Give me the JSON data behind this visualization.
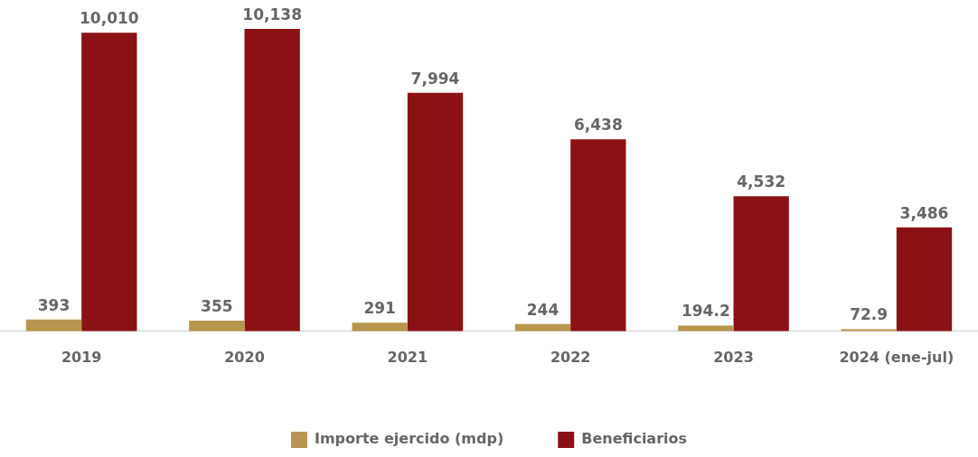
{
  "chart_data": {
    "type": "bar",
    "categories": [
      "2019",
      "2020",
      "2021",
      "2022",
      "2023",
      "2024 (ene-jul)"
    ],
    "series": [
      {
        "name": "Importe ejercido (mdp)",
        "color": "#b8964f",
        "values": [
          393,
          355,
          291,
          244,
          194.2,
          72.9
        ],
        "value_labels": [
          "393",
          "355",
          "291",
          "244",
          "194.2",
          "72.9"
        ]
      },
      {
        "name": "Beneficiarios",
        "color": "#8b1214",
        "values": [
          10010,
          10138,
          7994,
          6438,
          4532,
          3486
        ],
        "value_labels": [
          "10,010",
          "10,138",
          "7,994",
          "6,438",
          "4,532",
          "3,486"
        ]
      }
    ],
    "tick_labels": "x",
    "grid": false,
    "legend": "bottom"
  }
}
